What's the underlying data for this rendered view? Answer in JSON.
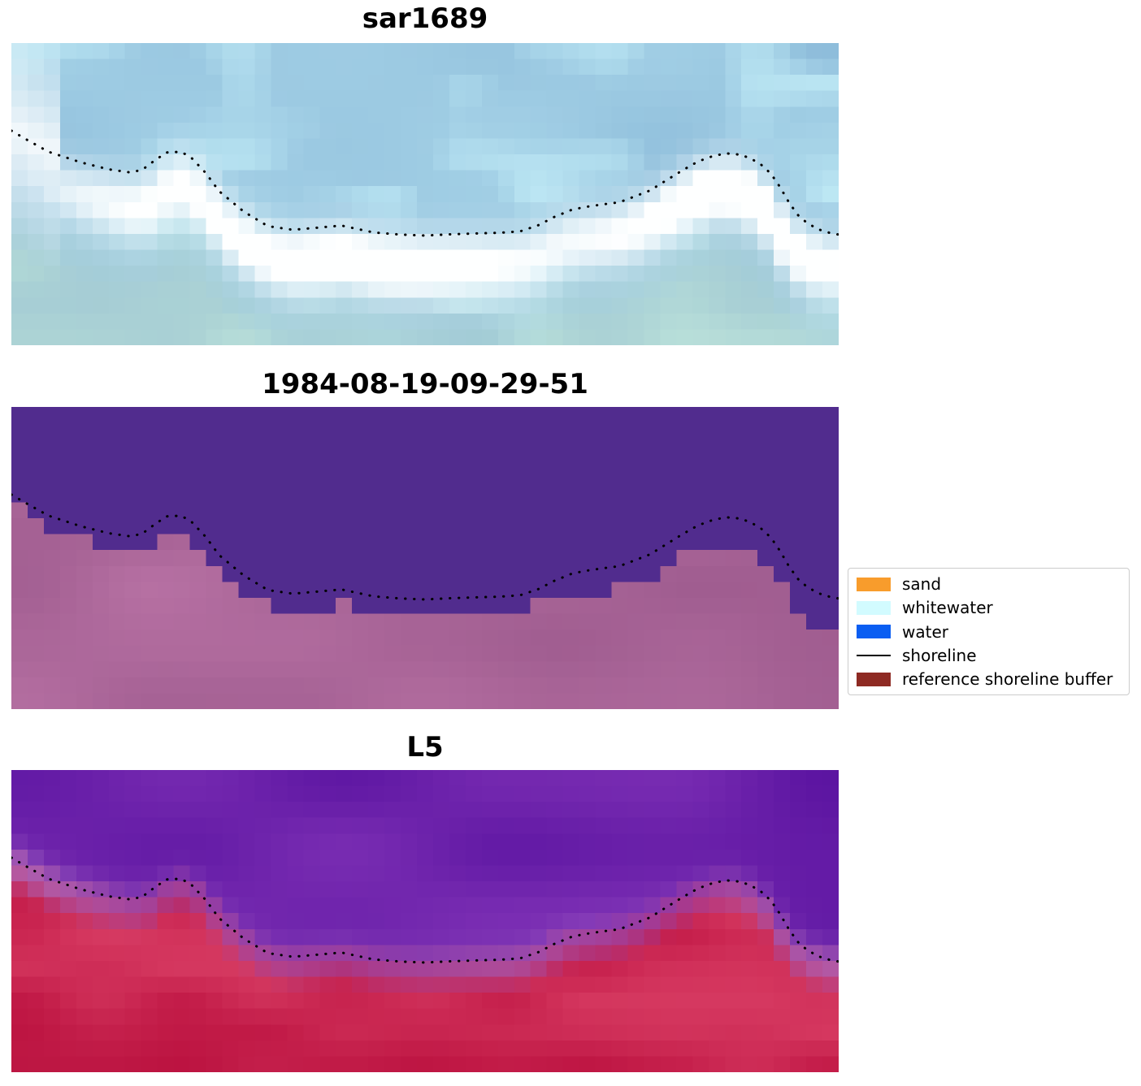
{
  "figure": {
    "background": "#ffffff"
  },
  "panels": [
    {
      "id": "sar",
      "title": "sar1689",
      "style": "sar",
      "palette": {
        "sky_a": "#a7d4e8",
        "sky_b": "#8bbad9",
        "sky_c": "#c4eef8",
        "white": "#feffff",
        "bottom_a": "#a7cdd2",
        "bottom_b": "#b6dcd4"
      }
    },
    {
      "id": "class",
      "title": "1984-08-19-09-29-51",
      "style": "class",
      "palette": {
        "water": "#512c8e",
        "sand_a": "#bd76a8",
        "sand_b": "#a05d90"
      }
    },
    {
      "id": "l5",
      "title": "L5",
      "style": "l5",
      "palette": {
        "top_a": "#5a13a0",
        "top_b": "#7c2fb4",
        "bot_a": "#c51d4a",
        "bot_b": "#dc4268",
        "deep": "#b20736",
        "band": "#d9a8d8"
      }
    }
  ],
  "legend": {
    "entries": [
      {
        "label": "sand",
        "type": "patch",
        "color": "#f89c2c"
      },
      {
        "label": "whitewater",
        "type": "patch",
        "color": "#d2fbff"
      },
      {
        "label": "water",
        "type": "patch",
        "color": "#0a5ef2"
      },
      {
        "label": "shoreline",
        "type": "line",
        "color": "#000000"
      },
      {
        "label": "reference shoreline buffer",
        "type": "patch",
        "color": "#8e2a23"
      }
    ]
  },
  "chart_data": {
    "type": "image",
    "panels": [
      {
        "title": "sar1689"
      },
      {
        "title": "1984-08-19-09-29-51"
      },
      {
        "title": "L5"
      }
    ],
    "overlay": {
      "name": "shoreline",
      "line_style": "dotted",
      "color": "#000000",
      "points_fraction": [
        [
          0.0,
          0.29
        ],
        [
          0.02,
          0.322
        ],
        [
          0.045,
          0.36
        ],
        [
          0.084,
          0.395
        ],
        [
          0.118,
          0.418
        ],
        [
          0.143,
          0.428
        ],
        [
          0.158,
          0.42
        ],
        [
          0.175,
          0.385
        ],
        [
          0.188,
          0.362
        ],
        [
          0.205,
          0.36
        ],
        [
          0.217,
          0.378
        ],
        [
          0.235,
          0.43
        ],
        [
          0.251,
          0.49
        ],
        [
          0.281,
          0.558
        ],
        [
          0.31,
          0.606
        ],
        [
          0.34,
          0.618
        ],
        [
          0.37,
          0.611
        ],
        [
          0.399,
          0.604
        ],
        [
          0.438,
          0.627
        ],
        [
          0.47,
          0.634
        ],
        [
          0.5,
          0.637
        ],
        [
          0.53,
          0.633
        ],
        [
          0.56,
          0.63
        ],
        [
          0.59,
          0.628
        ],
        [
          0.615,
          0.623
        ],
        [
          0.638,
          0.602
        ],
        [
          0.655,
          0.577
        ],
        [
          0.678,
          0.551
        ],
        [
          0.695,
          0.542
        ],
        [
          0.715,
          0.534
        ],
        [
          0.735,
          0.527
        ],
        [
          0.755,
          0.506
        ],
        [
          0.772,
          0.488
        ],
        [
          0.793,
          0.452
        ],
        [
          0.812,
          0.42
        ],
        [
          0.83,
          0.392
        ],
        [
          0.848,
          0.374
        ],
        [
          0.864,
          0.365
        ],
        [
          0.88,
          0.369
        ],
        [
          0.893,
          0.381
        ],
        [
          0.906,
          0.402
        ],
        [
          0.918,
          0.432
        ],
        [
          0.929,
          0.476
        ],
        [
          0.94,
          0.528
        ],
        [
          0.951,
          0.57
        ],
        [
          0.962,
          0.596
        ],
        [
          0.976,
          0.617
        ],
        [
          0.99,
          0.629
        ],
        [
          1.0,
          0.634
        ]
      ]
    },
    "legend_position": "center right",
    "legend_entries": [
      "sand",
      "whitewater",
      "water",
      "shoreline",
      "reference shoreline buffer"
    ]
  }
}
